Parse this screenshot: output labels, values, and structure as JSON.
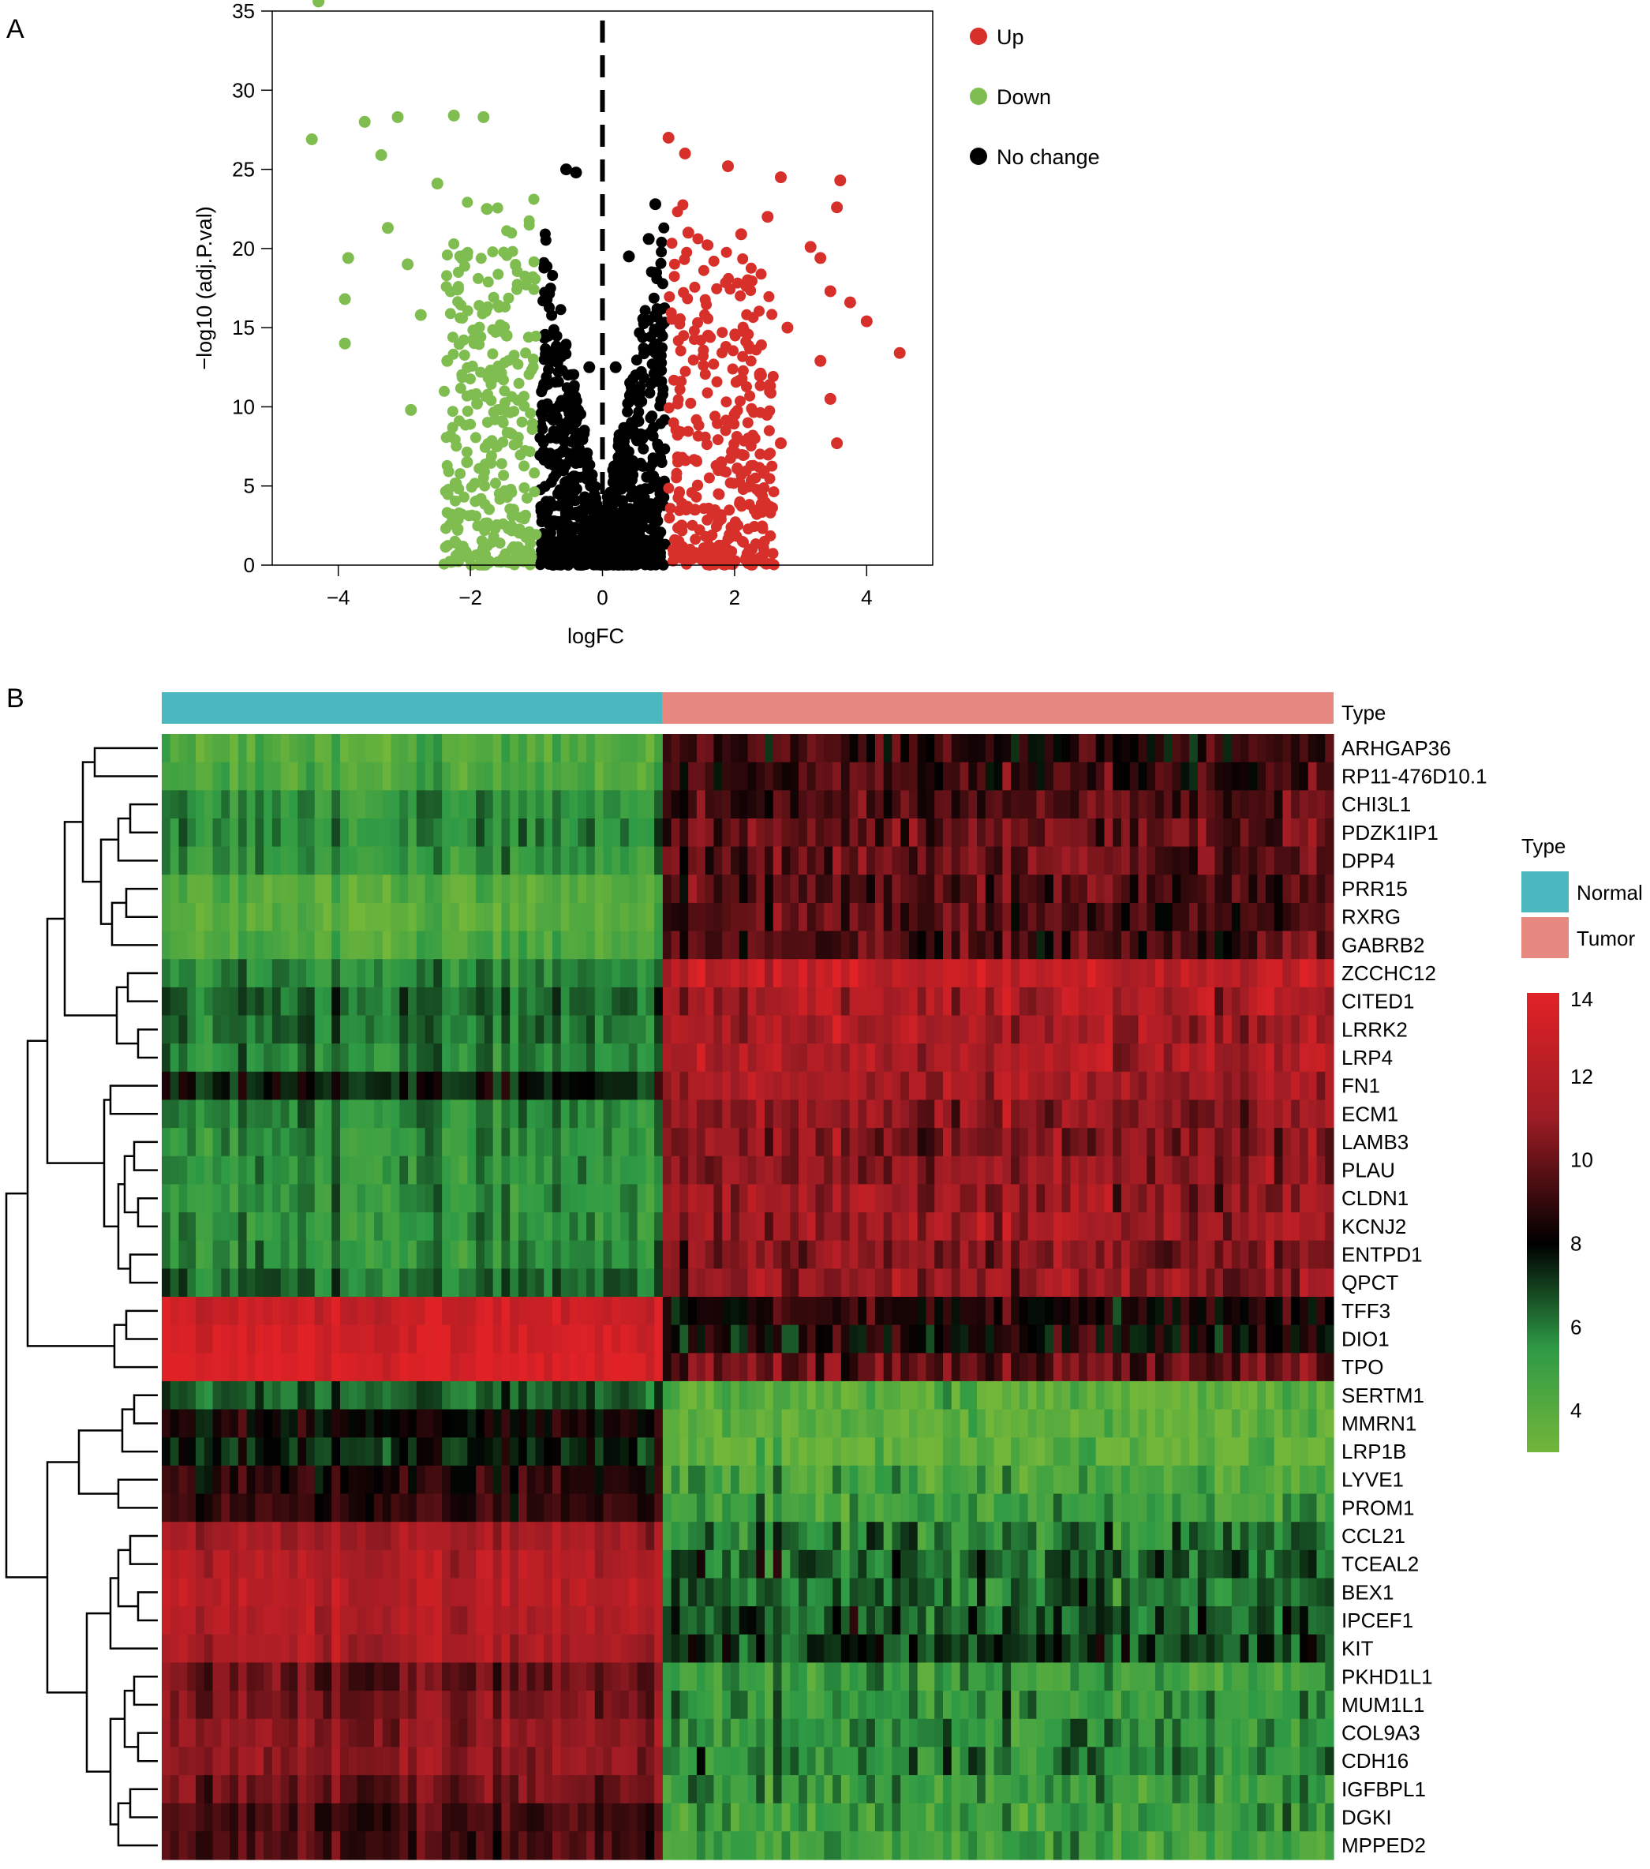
{
  "panels": {
    "a_label": "A",
    "b_label": "B"
  },
  "chart_data": [
    {
      "type": "scatter",
      "title": "",
      "xlabel": "logFC",
      "ylabel": "−log10 (adj.P.val)",
      "xlim": [
        -5,
        5
      ],
      "ylim": [
        0,
        35
      ],
      "xticks": [
        "−4",
        "−2",
        "0",
        "2",
        "4"
      ],
      "xtick_values": [
        -4,
        -2,
        0,
        2,
        4
      ],
      "yticks": [
        "0",
        "5",
        "10",
        "15",
        "20",
        "25",
        "30",
        "35"
      ],
      "ytick_values": [
        0,
        5,
        10,
        15,
        20,
        25,
        30,
        35
      ],
      "threshold_line_x": 0,
      "legend": {
        "position": "right",
        "entries": [
          {
            "label": "Up",
            "color": "#d7302b"
          },
          {
            "label": "Down",
            "color": "#7fbd50"
          },
          {
            "label": "No change",
            "color": "#000000"
          }
        ]
      },
      "series": [
        {
          "name": "Up",
          "color": "#d7302b",
          "points": [
            [
              3.6,
              24.3
            ],
            [
              3.55,
              22.6
            ],
            [
              3.15,
              20.1
            ],
            [
              3.3,
              19.4
            ],
            [
              2.7,
              24.5
            ],
            [
              3.45,
              17.3
            ],
            [
              3.75,
              16.6
            ],
            [
              4.0,
              15.4
            ],
            [
              4.5,
              13.4
            ],
            [
              3.3,
              12.9
            ],
            [
              3.45,
              10.5
            ],
            [
              3.55,
              7.7
            ],
            [
              2.7,
              7.7
            ],
            [
              2.1,
              20.9
            ],
            [
              1.9,
              25.2
            ],
            [
              1.0,
              27.0
            ],
            [
              1.25,
              26.0
            ],
            [
              2.5,
              22.0
            ],
            [
              2.2,
              18.0
            ],
            [
              2.8,
              15.0
            ],
            [
              2.4,
              12.0
            ],
            [
              2.0,
              9.5
            ],
            [
              1.8,
              6.5
            ],
            [
              1.4,
              3.5
            ],
            [
              1.2,
              2.5
            ],
            [
              1.15,
              1.5
            ],
            [
              1.6,
              14.5
            ],
            [
              1.3,
              21.0
            ]
          ]
        },
        {
          "name": "Down",
          "color": "#7fbd50",
          "points": [
            [
              -4.3,
              35.6
            ],
            [
              -4.4,
              26.9
            ],
            [
              -3.85,
              19.4
            ],
            [
              -3.9,
              16.8
            ],
            [
              -3.9,
              14.0
            ],
            [
              -3.6,
              28.0
            ],
            [
              -3.35,
              25.9
            ],
            [
              -3.1,
              28.3
            ],
            [
              -3.25,
              21.3
            ],
            [
              -2.95,
              19.0
            ],
            [
              -2.75,
              15.8
            ],
            [
              -2.9,
              9.8
            ],
            [
              -2.25,
              28.4
            ],
            [
              -1.8,
              28.3
            ],
            [
              -2.5,
              24.1
            ],
            [
              -2.2,
              17.4
            ],
            [
              -2.35,
              12.9
            ],
            [
              -1.9,
              10.2
            ],
            [
              -1.6,
              7.5
            ],
            [
              -1.35,
              3.5
            ],
            [
              -1.2,
              2.0
            ],
            [
              -1.75,
              22.5
            ],
            [
              -1.45,
              14.5
            ],
            [
              -2.05,
              6.5
            ],
            [
              -1.1,
              0.8
            ]
          ]
        },
        {
          "name": "No change",
          "color": "#000000",
          "points": [
            [
              -0.55,
              25.0
            ],
            [
              -0.4,
              24.8
            ],
            [
              0.4,
              19.5
            ],
            [
              0.7,
              20.6
            ],
            [
              0.8,
              22.8
            ],
            [
              -0.2,
              12.5
            ],
            [
              0.2,
              12.5
            ],
            [
              -0.05,
              2.0
            ],
            [
              0.05,
              2.0
            ],
            [
              0.0,
              0.3
            ],
            [
              -0.6,
              8.0
            ],
            [
              0.6,
              8.0
            ],
            [
              -0.85,
              4.0
            ],
            [
              0.85,
              4.0
            ],
            [
              -0.3,
              3.0
            ],
            [
              0.3,
              3.0
            ]
          ]
        }
      ]
    },
    {
      "type": "heatmap",
      "title": "",
      "annotation_label": "Type",
      "groups": [
        {
          "name": "Normal",
          "color": "#4bb8c0",
          "count": 59
        },
        {
          "name": "Tumor",
          "color": "#e78880",
          "count": 79
        }
      ],
      "rows": [
        "ARHGAP36",
        "RP11-476D10.1",
        "CHI3L1",
        "PDZK1IP1",
        "DPP4",
        "PRR15",
        "RXRG",
        "GABRB2",
        "ZCCHC12",
        "CITED1",
        "LRRK2",
        "LRP4",
        "FN1",
        "ECM1",
        "LAMB3",
        "PLAU",
        "CLDN1",
        "KCNJ2",
        "ENTPD1",
        "QPCT",
        "TFF3",
        "DIO1",
        "TPO",
        "SERTM1",
        "MMRN1",
        "LRP1B",
        "LYVE1",
        "PROM1",
        "CCL21",
        "TCEAL2",
        "BEX1",
        "IPCEF1",
        "KIT",
        "PKHD1L1",
        "MUM1L1",
        "COL9A3",
        "CDH16",
        "IGFBPL1",
        "DGKI",
        "MPPED2"
      ],
      "row_mean_normal": [
        4.2,
        4.5,
        5.6,
        5.8,
        5.3,
        4.1,
        4.0,
        4.3,
        5.8,
        6.5,
        6.3,
        6.0,
        7.7,
        5.8,
        5.6,
        5.6,
        5.5,
        5.6,
        5.7,
        6.5,
        13.2,
        13.5,
        13.8,
        6.5,
        8.3,
        7.5,
        8.8,
        9.0,
        11.5,
        12.0,
        12.3,
        12.0,
        11.8,
        10.0,
        10.5,
        10.8,
        10.9,
        10.2,
        9.3,
        9.5
      ],
      "row_mean_tumor": [
        8.8,
        9.2,
        9.3,
        9.8,
        10.0,
        9.5,
        9.4,
        9.4,
        12.5,
        11.8,
        11.5,
        11.7,
        11.5,
        10.8,
        10.5,
        10.9,
        11.0,
        11.2,
        10.5,
        11.0,
        8.5,
        8.2,
        9.8,
        3.8,
        3.6,
        3.6,
        4.5,
        4.8,
        6.0,
        6.5,
        6.2,
        6.8,
        7.0,
        5.0,
        5.3,
        5.6,
        5.8,
        5.2,
        5.0,
        4.8
      ],
      "color_scale": {
        "min": 3,
        "max": 14,
        "ticks": [
          "4",
          "6",
          "8",
          "10",
          "12",
          "14"
        ],
        "tick_values": [
          4,
          6,
          8,
          10,
          12,
          14
        ],
        "stops": [
          {
            "value": 3,
            "color": "#72b63a"
          },
          {
            "value": 5.5,
            "color": "#2e9a45"
          },
          {
            "value": 8,
            "color": "#000000"
          },
          {
            "value": 11,
            "color": "#9c1c24"
          },
          {
            "value": 14,
            "color": "#e02226"
          }
        ]
      },
      "legend": {
        "position": "right",
        "title": "Type"
      }
    }
  ]
}
